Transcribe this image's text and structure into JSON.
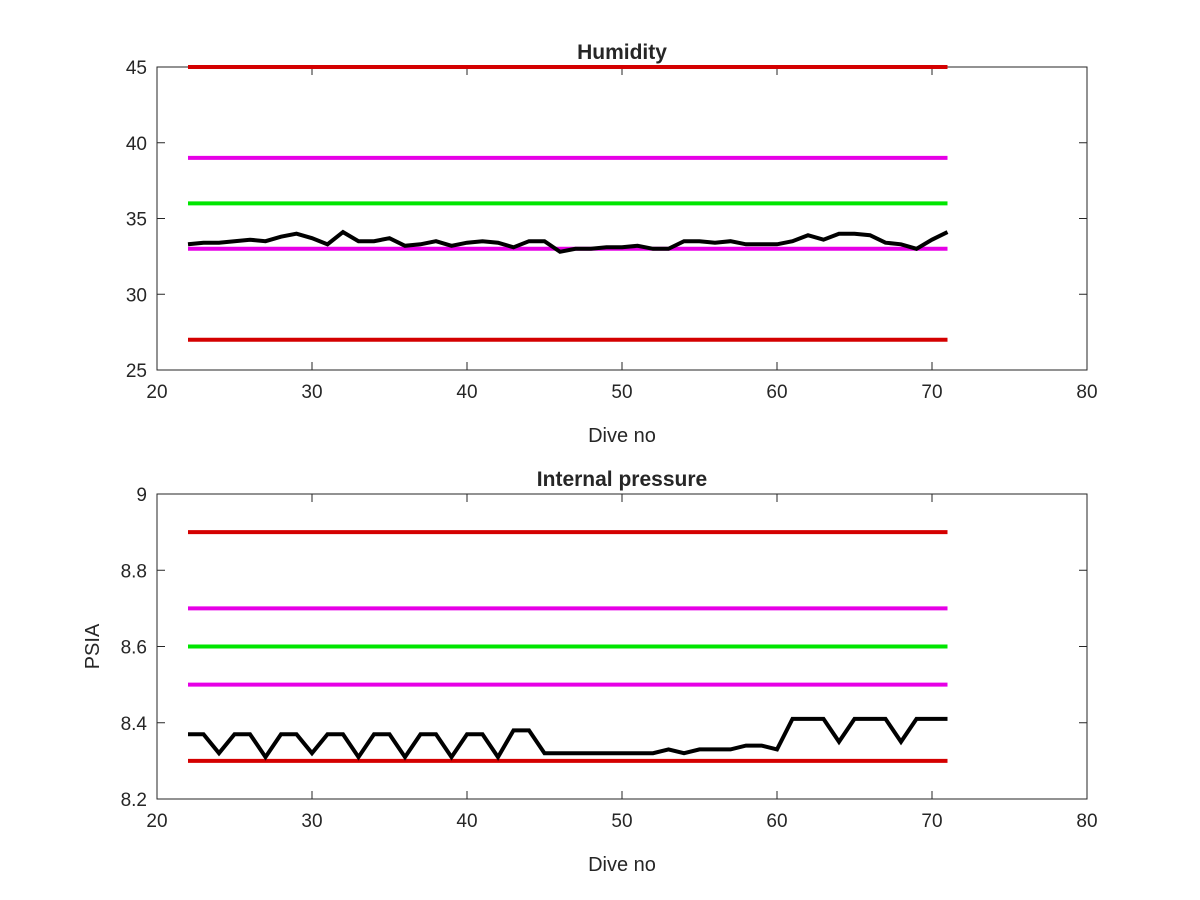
{
  "chart_data": [
    {
      "type": "line",
      "title": "Humidity",
      "xlabel": "Dive no",
      "ylabel": "",
      "xlim": [
        20,
        80
      ],
      "ylim": [
        25,
        45
      ],
      "xticks": [
        "20",
        "30",
        "40",
        "50",
        "60",
        "70",
        "80"
      ],
      "yticks": [
        "25",
        "30",
        "35",
        "40",
        "45"
      ],
      "grid": false,
      "reference_lines": [
        {
          "y": 45,
          "x_range": [
            22,
            71
          ],
          "color": "#d40000"
        },
        {
          "y": 39,
          "x_range": [
            22,
            71
          ],
          "color": "#e600e6"
        },
        {
          "y": 36,
          "x_range": [
            22,
            71
          ],
          "color": "#00e600"
        },
        {
          "y": 33,
          "x_range": [
            22,
            71
          ],
          "color": "#e600e6"
        },
        {
          "y": 27,
          "x_range": [
            22,
            71
          ],
          "color": "#d40000"
        }
      ],
      "series": [
        {
          "color": "#000000",
          "x": [
            22,
            23,
            24,
            25,
            26,
            27,
            28,
            29,
            30,
            31,
            32,
            33,
            34,
            35,
            36,
            37,
            38,
            39,
            40,
            41,
            42,
            43,
            44,
            45,
            46,
            47,
            48,
            49,
            50,
            51,
            52,
            53,
            54,
            55,
            56,
            57,
            58,
            59,
            60,
            61,
            62,
            63,
            64,
            65,
            66,
            67,
            68,
            69,
            70,
            71
          ],
          "y": [
            33.3,
            33.4,
            33.4,
            33.5,
            33.6,
            33.5,
            33.8,
            34.0,
            33.7,
            33.3,
            34.1,
            33.5,
            33.5,
            33.7,
            33.2,
            33.3,
            33.5,
            33.2,
            33.4,
            33.5,
            33.4,
            33.1,
            33.5,
            33.5,
            32.8,
            33.0,
            33.0,
            33.1,
            33.1,
            33.2,
            33.0,
            33.0,
            33.5,
            33.5,
            33.4,
            33.5,
            33.3,
            33.3,
            33.3,
            33.5,
            33.9,
            33.6,
            34.0,
            34.0,
            33.9,
            33.4,
            33.3,
            33.0,
            33.6,
            34.1
          ]
        }
      ]
    },
    {
      "type": "line",
      "title": "Internal pressure",
      "xlabel": "Dive no",
      "ylabel": "PSIA",
      "xlim": [
        20,
        80
      ],
      "ylim": [
        8.2,
        9
      ],
      "xticks": [
        "20",
        "30",
        "40",
        "50",
        "60",
        "70",
        "80"
      ],
      "yticks": [
        "8.2",
        "8.4",
        "8.6",
        "8.8",
        "9"
      ],
      "grid": false,
      "reference_lines": [
        {
          "y": 8.9,
          "x_range": [
            22,
            71
          ],
          "color": "#d40000"
        },
        {
          "y": 8.7,
          "x_range": [
            22,
            71
          ],
          "color": "#e600e6"
        },
        {
          "y": 8.6,
          "x_range": [
            22,
            71
          ],
          "color": "#00e600"
        },
        {
          "y": 8.5,
          "x_range": [
            22,
            71
          ],
          "color": "#e600e6"
        },
        {
          "y": 8.3,
          "x_range": [
            22,
            71
          ],
          "color": "#d40000"
        }
      ],
      "series": [
        {
          "color": "#000000",
          "x": [
            22,
            23,
            24,
            25,
            26,
            27,
            28,
            29,
            30,
            31,
            32,
            33,
            34,
            35,
            36,
            37,
            38,
            39,
            40,
            41,
            42,
            43,
            44,
            45,
            46,
            47,
            48,
            49,
            50,
            51,
            52,
            53,
            54,
            55,
            56,
            57,
            58,
            59,
            60,
            61,
            62,
            63,
            64,
            65,
            66,
            67,
            68,
            69,
            70,
            71
          ],
          "y": [
            8.37,
            8.37,
            8.32,
            8.37,
            8.37,
            8.31,
            8.37,
            8.37,
            8.32,
            8.37,
            8.37,
            8.31,
            8.37,
            8.37,
            8.31,
            8.37,
            8.37,
            8.31,
            8.37,
            8.37,
            8.31,
            8.38,
            8.38,
            8.32,
            8.32,
            8.32,
            8.32,
            8.32,
            8.32,
            8.32,
            8.32,
            8.33,
            8.32,
            8.33,
            8.33,
            8.33,
            8.34,
            8.34,
            8.33,
            8.41,
            8.41,
            8.41,
            8.35,
            8.41,
            8.41,
            8.41,
            8.35,
            8.41,
            8.41,
            8.41
          ]
        }
      ]
    }
  ]
}
